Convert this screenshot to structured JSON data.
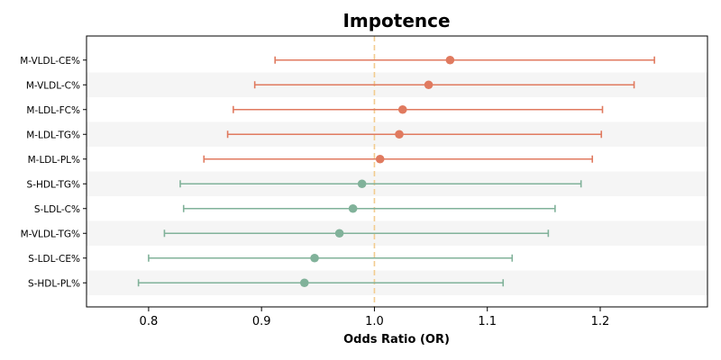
{
  "chart_data": {
    "type": "forest",
    "title": "Impotence",
    "xlabel": "Odds Ratio (OR)",
    "xlim": [
      0.745,
      1.295
    ],
    "xticks": [
      0.8,
      0.9,
      1.0,
      1.1,
      1.2
    ],
    "xtick_labels": [
      "0.8",
      "0.9",
      "1.0",
      "1.1",
      "1.2"
    ],
    "reference_line": 1.0,
    "grid": false,
    "categories": [
      "M-VLDL-CE%",
      "M-VLDL-C%",
      "M-LDL-FC%",
      "M-LDL-TG%",
      "M-LDL-PL%",
      "S-HDL-TG%",
      "S-LDL-C%",
      "M-VLDL-TG%",
      "S-LDL-CE%",
      "S-HDL-PL%"
    ],
    "or": [
      1.067,
      1.048,
      1.025,
      1.022,
      1.005,
      0.989,
      0.981,
      0.969,
      0.947,
      0.938
    ],
    "lower": [
      0.912,
      0.894,
      0.875,
      0.87,
      0.849,
      0.828,
      0.831,
      0.814,
      0.8,
      0.791
    ],
    "upper": [
      1.248,
      1.23,
      1.202,
      1.201,
      1.193,
      1.183,
      1.16,
      1.154,
      1.122,
      1.114
    ],
    "colors": {
      "risk": "#e07a5f",
      "protective": "#81b29a",
      "reference": "#f2cc8f",
      "band": "#f5f5f5"
    }
  }
}
